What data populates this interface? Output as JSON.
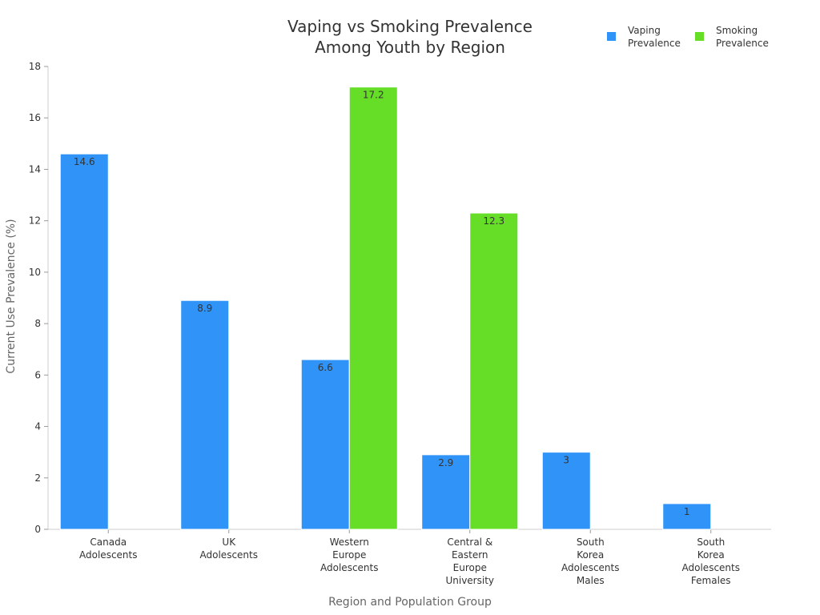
{
  "chart_data": {
    "type": "bar",
    "title": [
      "Vaping vs Smoking Prevalence",
      "Among Youth by Region"
    ],
    "xlabel": "Region and Population Group",
    "ylabel": "Current Use Prevalence (%)",
    "ylim": [
      0,
      18
    ],
    "yticks": [
      0,
      2,
      4,
      6,
      8,
      10,
      12,
      14,
      16,
      18
    ],
    "grid": false,
    "legend_position": "top-right",
    "categories": [
      [
        "Canada",
        "Adolescents"
      ],
      [
        "UK",
        "Adolescents"
      ],
      [
        "Western",
        "Europe",
        "Adolescents"
      ],
      [
        "Central &",
        "Eastern",
        "Europe",
        "University"
      ],
      [
        "South",
        "Korea",
        "Adolescents",
        "Males"
      ],
      [
        "South",
        "Korea",
        "Adolescents",
        "Females"
      ]
    ],
    "series": [
      {
        "name": [
          "Vaping",
          "Prevalence"
        ],
        "color": "#2f93f7",
        "values": [
          14.6,
          8.9,
          6.6,
          2.9,
          3,
          1
        ]
      },
      {
        "name": [
          "Smoking",
          "Prevalence"
        ],
        "color": "#66dd26",
        "values": [
          null,
          null,
          17.2,
          12.3,
          null,
          null
        ]
      }
    ]
  }
}
